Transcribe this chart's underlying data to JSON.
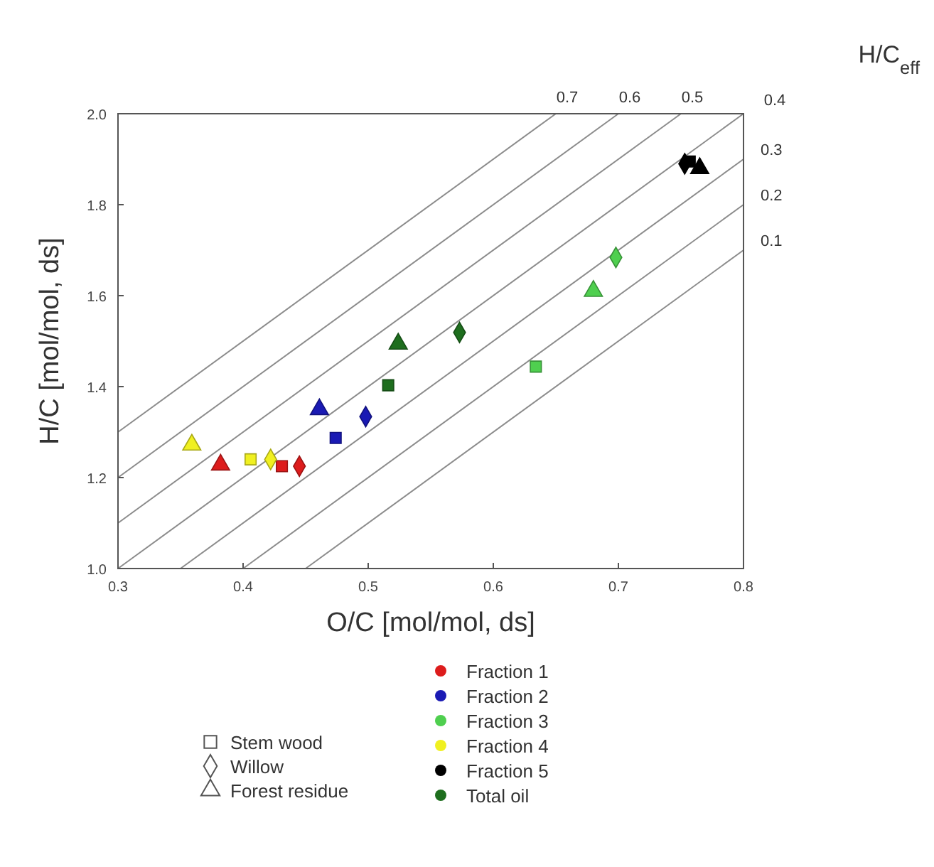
{
  "chart_data": {
    "type": "scatter",
    "xlabel": "O/C [mol/mol, ds]",
    "ylabel": "H/C [mol/mol, ds]",
    "annotations": [
      "H/C$_{eff}$",
      "Stem wood",
      "Willow",
      "Forest residue"
    ],
    "xlim": [
      0.3,
      0.8
    ],
    "ylim": [
      1.0,
      2.0
    ],
    "xticks": [
      0.3,
      0.4,
      0.5,
      0.6,
      0.7,
      0.8
    ],
    "yticks": [
      {
        "value": 1.0,
        "label": "1.0"
      },
      1.2,
      1.4,
      1.6,
      1.8,
      {
        "value": 2.0,
        "label": "2.0"
      }
    ],
    "legend": "bottom",
    "series": [
      {
        "type": "line",
        "name": "0.7",
        "color": "#8c8c8c",
        "x": [
          0.3,
          0.65
        ],
        "values": [
          1.3,
          2.0
        ]
      },
      {
        "type": "line",
        "name": "0.6",
        "color": "#8c8c8c",
        "x": [
          0.3,
          0.7
        ],
        "values": [
          1.2,
          2.0
        ]
      },
      {
        "type": "line",
        "name": "0.5",
        "color": "#8c8c8c",
        "x": [
          0.3,
          0.75
        ],
        "values": [
          1.1,
          2.0
        ]
      },
      {
        "type": "line",
        "name": "0.4",
        "color": "#8c8c8c",
        "x": [
          0.3,
          0.8
        ],
        "values": [
          1.0,
          2.0
        ]
      },
      {
        "type": "line",
        "name": "0.3",
        "color": "#8c8c8c",
        "x": [
          0.35,
          0.8
        ],
        "values": [
          1.0,
          1.9
        ]
      },
      {
        "type": "line",
        "name": "0.2",
        "color": "#8c8c8c",
        "x": [
          0.4,
          0.8
        ],
        "values": [
          1.0,
          1.8
        ]
      },
      {
        "type": "line",
        "name": "0.1",
        "color": "#8c8c8c",
        "x": [
          0.45,
          0.8
        ],
        "values": [
          1.0,
          1.7
        ]
      },
      {
        "name": "Fraction 1",
        "color": "#dd1c1c",
        "marker": [
          "square",
          "diamond",
          "triangle"
        ],
        "x": [
          0.431,
          0.445,
          0.382
        ],
        "values": [
          1.225,
          1.225,
          1.228
        ]
      },
      {
        "name": "Fraction 2",
        "color": "#1a1ab4",
        "marker": [
          "square",
          "diamond",
          "triangle"
        ],
        "x": [
          0.474,
          0.498,
          0.461
        ],
        "values": [
          1.287,
          1.334,
          1.35
        ]
      },
      {
        "name": "Fraction 3",
        "color": "#4fcf4f",
        "marker": [
          "square",
          "diamond",
          "triangle"
        ],
        "x": [
          0.634,
          0.698,
          0.68
        ],
        "values": [
          1.444,
          1.684,
          1.61
        ]
      },
      {
        "name": "Fraction 4",
        "color": "#f0f020",
        "marker": [
          "square",
          "diamond",
          "triangle"
        ],
        "x": [
          0.406,
          0.422,
          0.359
        ],
        "values": [
          1.24,
          1.24,
          1.272
        ]
      },
      {
        "name": "Fraction 5",
        "color": "#000000",
        "marker": [
          "square",
          "diamond",
          "triangle"
        ],
        "x": [
          0.757,
          0.753,
          0.765
        ],
        "values": [
          1.895,
          1.89,
          1.88
        ]
      },
      {
        "name": "Total oil",
        "color": "#1e6e1e",
        "marker": [
          "square",
          "diamond",
          "triangle"
        ],
        "x": [
          0.516,
          0.573,
          0.524
        ],
        "values": [
          1.403,
          1.519,
          1.494
        ]
      }
    ]
  }
}
